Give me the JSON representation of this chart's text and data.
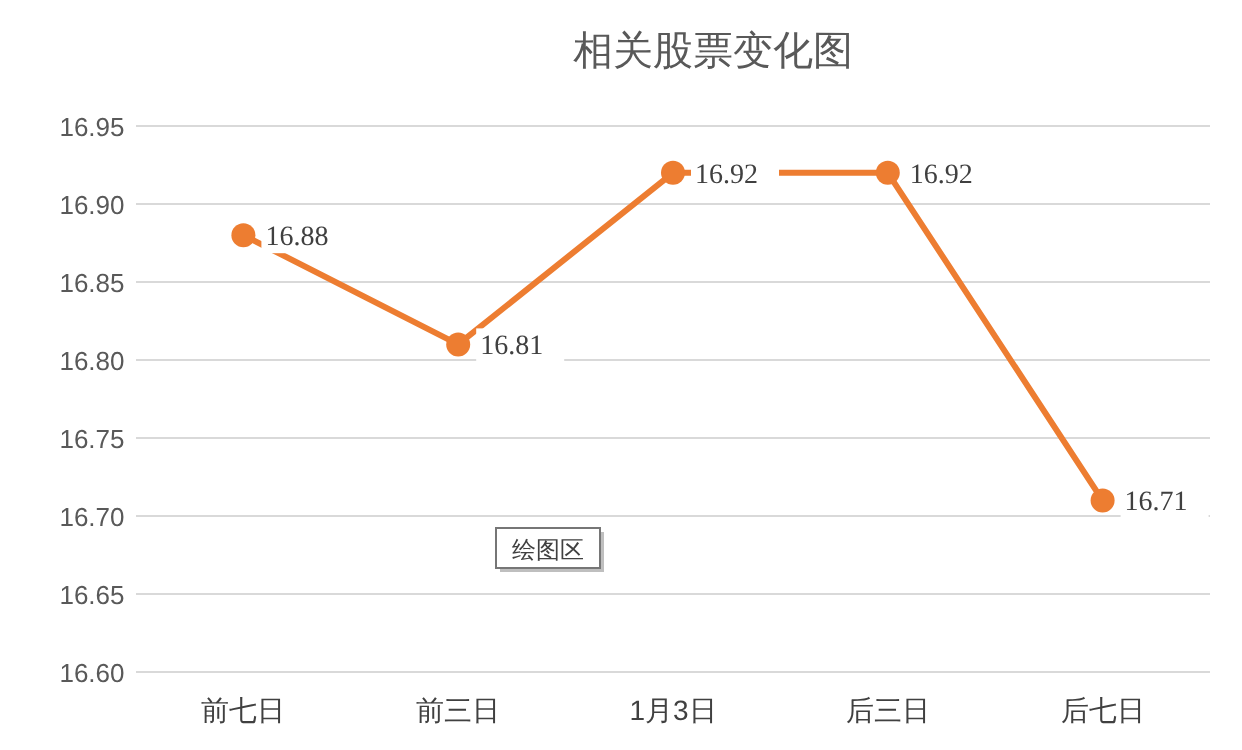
{
  "chart_data": {
    "type": "line",
    "title": "相关股票变化图",
    "categories": [
      "前七日",
      "前三日",
      "1月3日",
      "后三日",
      "后七日"
    ],
    "series": [
      {
        "color": "#ed7d31",
        "values": [
          16.88,
          16.81,
          16.92,
          16.92,
          16.71
        ]
      }
    ],
    "ylim": [
      16.6,
      16.95
    ],
    "yticks": [
      {
        "value": 16.6,
        "label": "16.60"
      },
      16.65,
      {
        "value": 16.7,
        "label": "16.70"
      },
      16.75,
      {
        "value": 16.8,
        "label": "16.80"
      },
      16.85,
      {
        "value": 16.9,
        "label": "16.90"
      },
      16.95
    ],
    "grid": "y",
    "marker": "circle",
    "line_style": "solid",
    "data_labels": true,
    "annotations": [
      "绘图区"
    ]
  }
}
